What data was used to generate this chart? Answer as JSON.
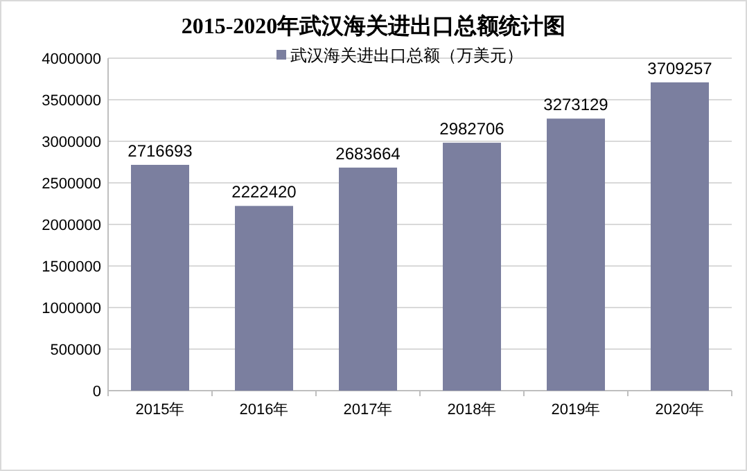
{
  "chart_data": {
    "type": "bar",
    "title": "2015-2020年武汉海关进出口总额统计图",
    "categories": [
      "2015年",
      "2016年",
      "2017年",
      "2018年",
      "2019年",
      "2020年"
    ],
    "series": [
      {
        "name": "武汉海关进出口总额（万美元）",
        "color": "#7b7f9f",
        "values": [
          2716693,
          2222420,
          2683664,
          2982706,
          3273129,
          3709257
        ]
      }
    ],
    "ylim": [
      0,
      4000000
    ],
    "yticks": [
      0,
      500000,
      1000000,
      1500000,
      2000000,
      2500000,
      3000000,
      3500000,
      4000000
    ],
    "grid": "y",
    "legend": "top",
    "data_labels": true
  }
}
